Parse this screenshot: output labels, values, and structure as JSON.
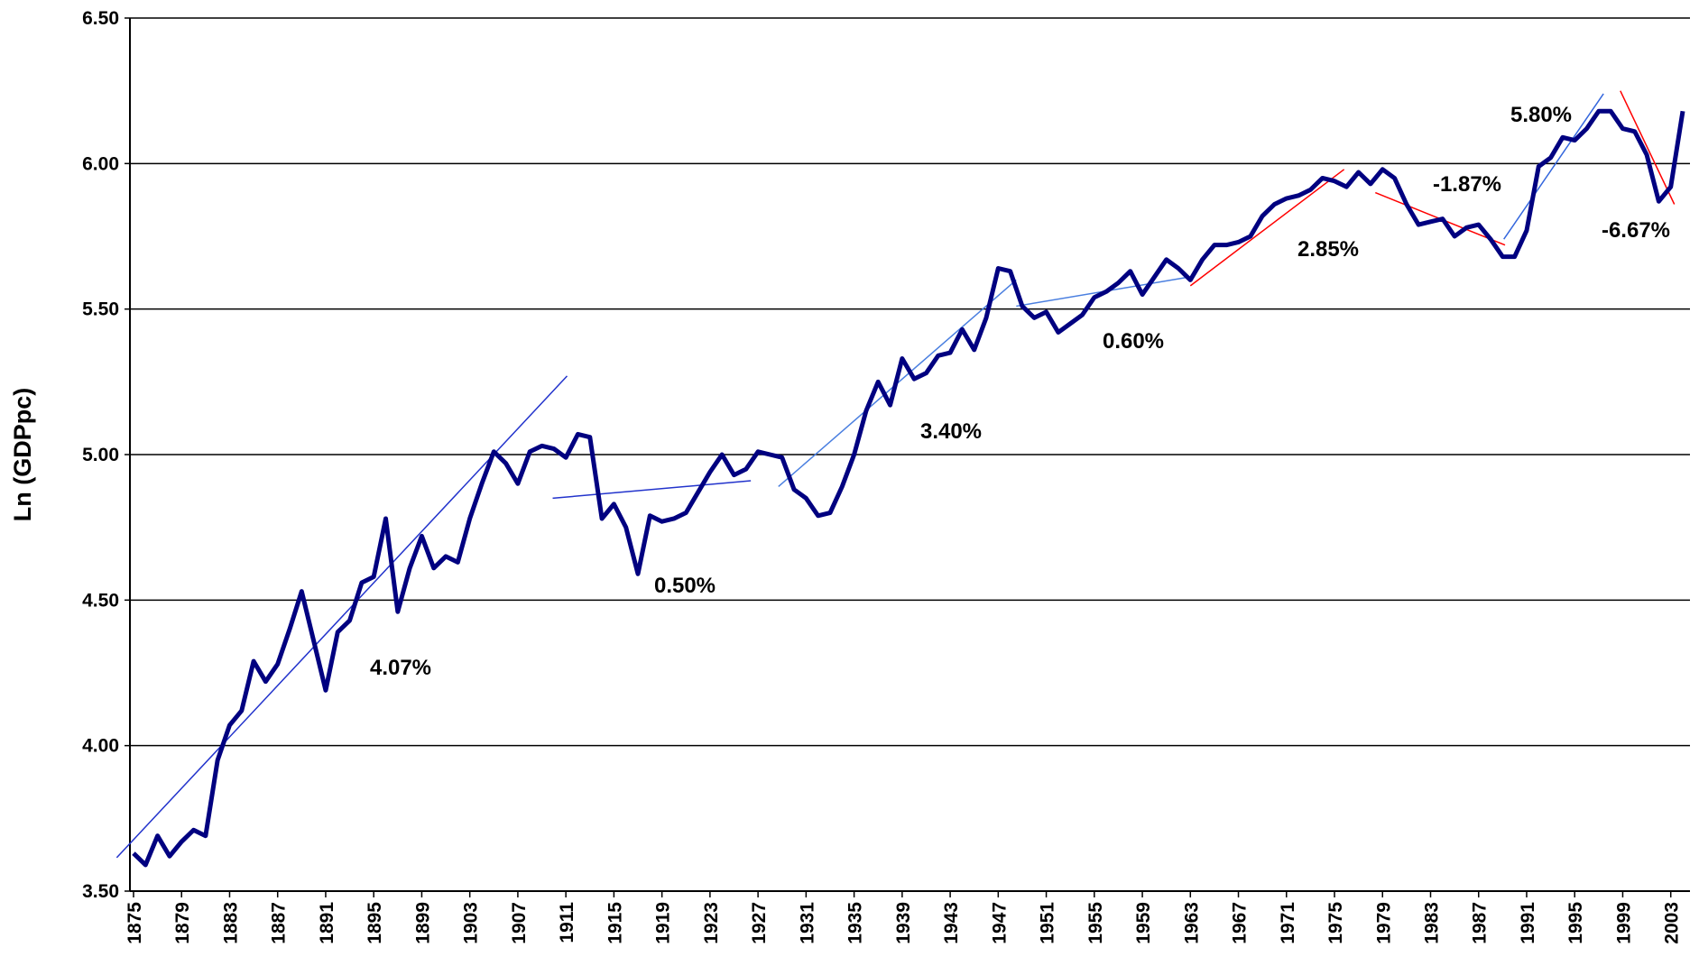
{
  "chart_data": {
    "type": "line",
    "y_label": "Ln (GDPpc)",
    "x": [
      1875,
      1876,
      1877,
      1878,
      1879,
      1880,
      1881,
      1882,
      1883,
      1884,
      1885,
      1886,
      1887,
      1888,
      1889,
      1890,
      1891,
      1892,
      1893,
      1894,
      1895,
      1896,
      1897,
      1898,
      1899,
      1900,
      1901,
      1902,
      1903,
      1904,
      1905,
      1906,
      1907,
      1908,
      1909,
      1910,
      1911,
      1912,
      1913,
      1914,
      1915,
      1916,
      1917,
      1918,
      1919,
      1920,
      1921,
      1922,
      1923,
      1924,
      1925,
      1926,
      1927,
      1928,
      1929,
      1930,
      1931,
      1932,
      1933,
      1934,
      1935,
      1936,
      1937,
      1938,
      1939,
      1940,
      1941,
      1942,
      1943,
      1944,
      1945,
      1946,
      1947,
      1948,
      1949,
      1950,
      1951,
      1952,
      1953,
      1954,
      1955,
      1956,
      1957,
      1958,
      1959,
      1960,
      1961,
      1962,
      1963,
      1964,
      1965,
      1966,
      1967,
      1968,
      1969,
      1970,
      1971,
      1972,
      1973,
      1974,
      1975,
      1976,
      1977,
      1978,
      1979,
      1980,
      1981,
      1982,
      1983,
      1984,
      1985,
      1986,
      1987,
      1988,
      1989,
      1990,
      1991,
      1992,
      1993,
      1994,
      1995,
      1996,
      1997,
      1998,
      1999,
      2000,
      2001,
      2002,
      2003,
      2004
    ],
    "series": [
      {
        "color": "#000080",
        "values": [
          3.63,
          3.59,
          3.69,
          3.62,
          3.67,
          3.71,
          3.69,
          3.95,
          4.07,
          4.12,
          4.29,
          4.22,
          4.28,
          4.4,
          4.53,
          4.36,
          4.19,
          4.39,
          4.43,
          4.56,
          4.58,
          4.78,
          4.46,
          4.61,
          4.72,
          4.61,
          4.65,
          4.63,
          4.78,
          4.9,
          5.01,
          4.97,
          4.9,
          5.01,
          5.03,
          5.02,
          4.99,
          5.07,
          5.06,
          4.78,
          4.83,
          4.75,
          4.59,
          4.79,
          4.77,
          4.78,
          4.8,
          4.87,
          4.94,
          5.0,
          4.93,
          4.95,
          5.01,
          5.0,
          4.99,
          4.88,
          4.85,
          4.79,
          4.8,
          4.89,
          5.0,
          5.15,
          5.25,
          5.17,
          5.33,
          5.26,
          5.28,
          5.34,
          5.35,
          5.43,
          5.36,
          5.47,
          5.64,
          5.63,
          5.51,
          5.47,
          5.49,
          5.42,
          5.45,
          5.48,
          5.54,
          5.56,
          5.59,
          5.63,
          5.55,
          5.61,
          5.67,
          5.64,
          5.6,
          5.67,
          5.72,
          5.72,
          5.73,
          5.75,
          5.82,
          5.86,
          5.88,
          5.89,
          5.91,
          5.95,
          5.94,
          5.92,
          5.97,
          5.93,
          5.98,
          5.95,
          5.86,
          5.79,
          5.8,
          5.81,
          5.75,
          5.78,
          5.79,
          5.74,
          5.68,
          5.68,
          5.77,
          5.99,
          6.02,
          6.09,
          6.08,
          6.12,
          6.18,
          6.18,
          6.12,
          6.11,
          6.03,
          5.87,
          5.92,
          6.18
        ]
      }
    ],
    "trend_lines": [
      {
        "label": "4.07%",
        "color": "#2233cc",
        "x": [
          1873.6,
          1911.1
        ],
        "y": [
          3.615,
          5.27
        ]
      },
      {
        "label": "0.50%",
        "color": "#2233cc",
        "x": [
          1909.9,
          1926.4
        ],
        "y": [
          4.85,
          4.91
        ]
      },
      {
        "label": "3.40%",
        "color": "#4a7fe0",
        "x": [
          1928.7,
          1948.5
        ],
        "y": [
          4.89,
          5.6
        ]
      },
      {
        "label": "0.60%",
        "color": "#4a7fe0",
        "x": [
          1948.5,
          1962.9
        ],
        "y": [
          5.51,
          5.61
        ]
      },
      {
        "label": "2.85%",
        "color": "#ff0000",
        "x": [
          1963.0,
          1975.8
        ],
        "y": [
          5.58,
          5.98
        ]
      },
      {
        "label": "-1.87%",
        "color": "#ff0000",
        "x": [
          1978.4,
          1989.2
        ],
        "y": [
          5.9,
          5.72
        ]
      },
      {
        "label": "5.80%",
        "color": "#3366dd",
        "x": [
          1989.1,
          1997.4
        ],
        "y": [
          5.74,
          6.24
        ]
      },
      {
        "label": "-6.67%",
        "color": "#ff0000",
        "x": [
          1998.8,
          2003.3
        ],
        "y": [
          6.25,
          5.86
        ]
      }
    ],
    "xlim": [
      1874.7,
      2004.6
    ],
    "xticks": [
      1875,
      1879,
      1883,
      1887,
      1891,
      1895,
      1899,
      1903,
      1907,
      1911,
      1915,
      1919,
      1923,
      1927,
      1931,
      1935,
      1939,
      1943,
      1947,
      1951,
      1955,
      1959,
      1963,
      1967,
      1971,
      1975,
      1979,
      1983,
      1987,
      1991,
      1995,
      1999,
      2003
    ],
    "ylim": [
      3.5,
      6.5
    ],
    "yticks": [
      {
        "value": 3.5,
        "label": "3.50"
      },
      {
        "value": 4,
        "label": "4.00"
      },
      {
        "value": 4.5,
        "label": "4.50"
      },
      {
        "value": 5,
        "label": "5.00"
      },
      {
        "value": 5.5,
        "label": "5.50"
      },
      {
        "value": 6,
        "label": "6.00"
      },
      {
        "value": 6.5,
        "label": "6.50"
      }
    ],
    "grid": true
  }
}
